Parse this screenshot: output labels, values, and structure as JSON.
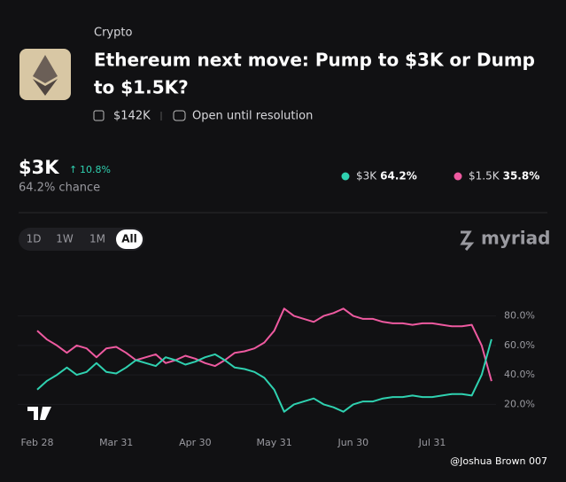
{
  "header": {
    "category": "Crypto",
    "title_line1": "Ethereum next move: Pump to $3K or Dump",
    "title_line2": "to $1.5K?",
    "volume": "$142K",
    "status": "Open until resolution"
  },
  "summary": {
    "price": "$3K",
    "change": "10.8%",
    "chance": "64.2% chance"
  },
  "ranges": [
    "1D",
    "1W",
    "1M",
    "All"
  ],
  "brand": "myriad",
  "watermark": "@Joshua Brown 007",
  "chart_data": {
    "type": "line",
    "categories": [
      "Feb 28",
      null,
      null,
      null,
      null,
      null,
      null,
      null,
      "Mar 31",
      null,
      null,
      null,
      null,
      null,
      null,
      null,
      "Apr 30",
      null,
      null,
      null,
      null,
      null,
      null,
      null,
      "May 31",
      null,
      null,
      null,
      null,
      null,
      null,
      null,
      "Jun 30",
      null,
      null,
      null,
      null,
      null,
      null,
      null,
      "Jul 31",
      null,
      null,
      null,
      null,
      null,
      null
    ],
    "series": [
      {
        "name": "$3K",
        "chance": "64.2%",
        "color": "#2fd1b0",
        "values": [
          30,
          36,
          40,
          45,
          40,
          42,
          48,
          42,
          41,
          45,
          50,
          48,
          46,
          52,
          50,
          47,
          49,
          52,
          54,
          50,
          45,
          44,
          42,
          38,
          30,
          15,
          20,
          22,
          24,
          20,
          18,
          15,
          20,
          22,
          22,
          24,
          25,
          25,
          26,
          25,
          25,
          26,
          27,
          27,
          26,
          40,
          64.2
        ]
      },
      {
        "name": "$1.5K",
        "chance": "35.8%",
        "color": "#ee5aa0",
        "values": [
          70,
          64,
          60,
          55,
          60,
          58,
          52,
          58,
          59,
          55,
          50,
          52,
          54,
          48,
          50,
          53,
          51,
          48,
          46,
          50,
          55,
          56,
          58,
          62,
          70,
          85,
          80,
          78,
          76,
          80,
          82,
          85,
          80,
          78,
          78,
          76,
          75,
          75,
          74,
          75,
          75,
          74,
          73,
          73,
          74,
          60,
          35.8
        ]
      }
    ],
    "ylim": [
      10,
      90
    ],
    "yticks": [
      {
        "value": 20,
        "label": "20.0%"
      },
      {
        "value": 40,
        "label": "40.0%"
      },
      {
        "value": 60,
        "label": "60.0%"
      },
      {
        "value": 80,
        "label": "80.0%"
      }
    ]
  }
}
